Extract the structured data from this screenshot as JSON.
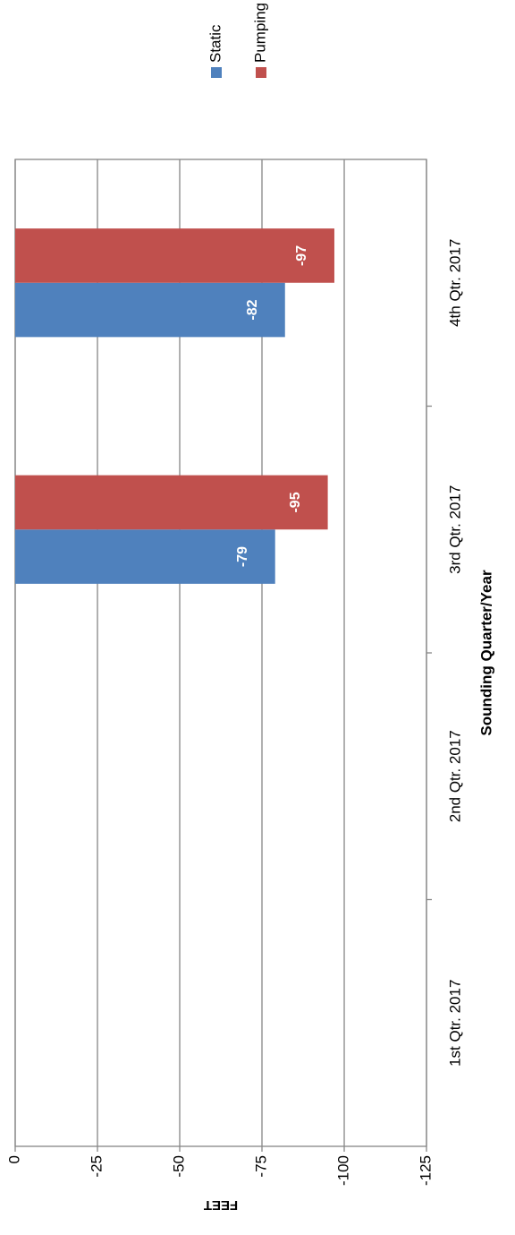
{
  "chart_data": {
    "type": "bar",
    "orientation": "rotated",
    "x_label": "Sounding Quarter/Year",
    "y_label": "FEET",
    "categories": [
      "1st Qtr. 2017",
      "2nd Qtr. 2017",
      "3rd Qtr. 2017",
      "4th Qtr. 2017"
    ],
    "series": [
      {
        "name": "Static",
        "color": "#4f81bd",
        "values": [
          null,
          null,
          -79,
          -82
        ]
      },
      {
        "name": "Pumping",
        "color": "#c0504d",
        "values": [
          null,
          null,
          -95,
          -97
        ]
      }
    ],
    "ylim": [
      -125,
      0
    ],
    "yticks": [
      0,
      -25,
      -50,
      -75,
      -100,
      -125
    ],
    "grid": true,
    "legend": "top-right"
  }
}
